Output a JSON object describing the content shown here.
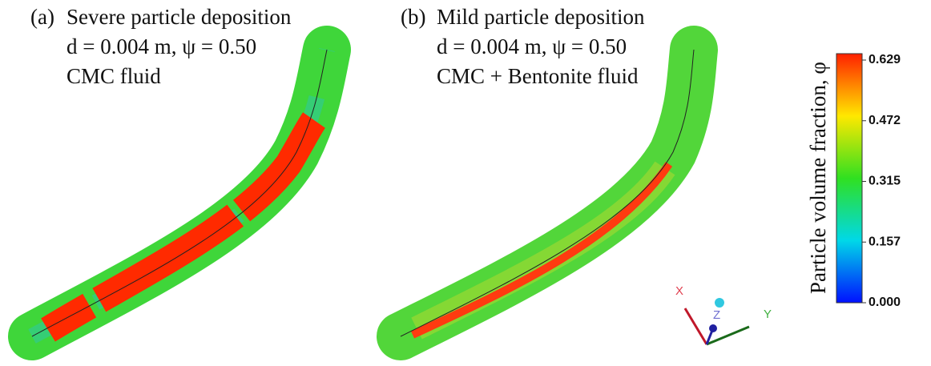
{
  "panels": [
    {
      "label": "(a)",
      "lines": [
        "Severe particle deposition",
        "d = 0.004 m, ψ = 0.50",
        "CMC fluid"
      ]
    },
    {
      "label": "(b)",
      "lines": [
        "Mild particle deposition",
        "d = 0.004 m, ψ = 0.50",
        "CMC + Bentonite fluid"
      ]
    }
  ],
  "colorbar": {
    "title": "Particle volume fraction, φ",
    "ticks": [
      "0.629",
      "0.472",
      "0.315",
      "0.157",
      "0.000"
    ]
  },
  "axes": {
    "x": "X",
    "y": "Y",
    "z": "Z"
  }
}
